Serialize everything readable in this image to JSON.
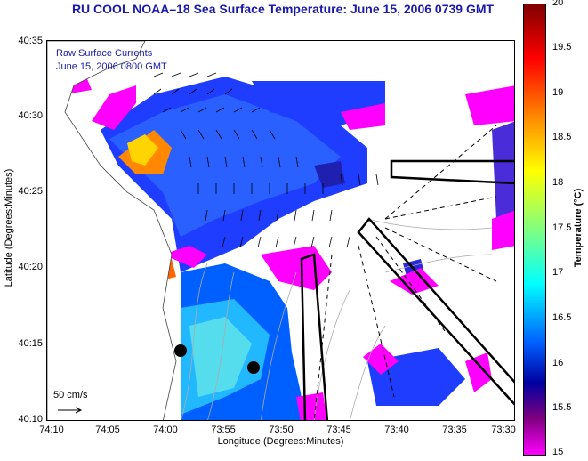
{
  "title": "RU COOL  NOAA–18  Sea Surface Temperature:  June 15, 2006 0739 GMT",
  "overlay": {
    "line1": "Raw Surface Currents",
    "line2": "June 15, 2006 0800 GMT"
  },
  "axes": {
    "xlabel": "Longitude (Degrees:Minutes)",
    "ylabel": "Latitude (Degrees:Minutes)",
    "xticks": [
      "74:10",
      "74:05",
      "74:00",
      "73:55",
      "73:50",
      "73:45",
      "73:40",
      "73:35",
      "73:30"
    ],
    "yticks": [
      "40:35",
      "40:30",
      "40:25",
      "40:20",
      "40:15",
      "40:10"
    ]
  },
  "colorbar": {
    "label": "Temperature (°C)",
    "ticks": [
      "20",
      "19.5",
      "19",
      "18.5",
      "18",
      "17.5",
      "17",
      "16.5",
      "16",
      "15.5",
      "15"
    ]
  },
  "scale": {
    "label": "50 cm/s"
  },
  "colors": {
    "title": "#1a1aa8",
    "land": "#ffffff",
    "warm": "#ff8800",
    "cool": "#0044ff",
    "cloud": "#ff00ff"
  }
}
